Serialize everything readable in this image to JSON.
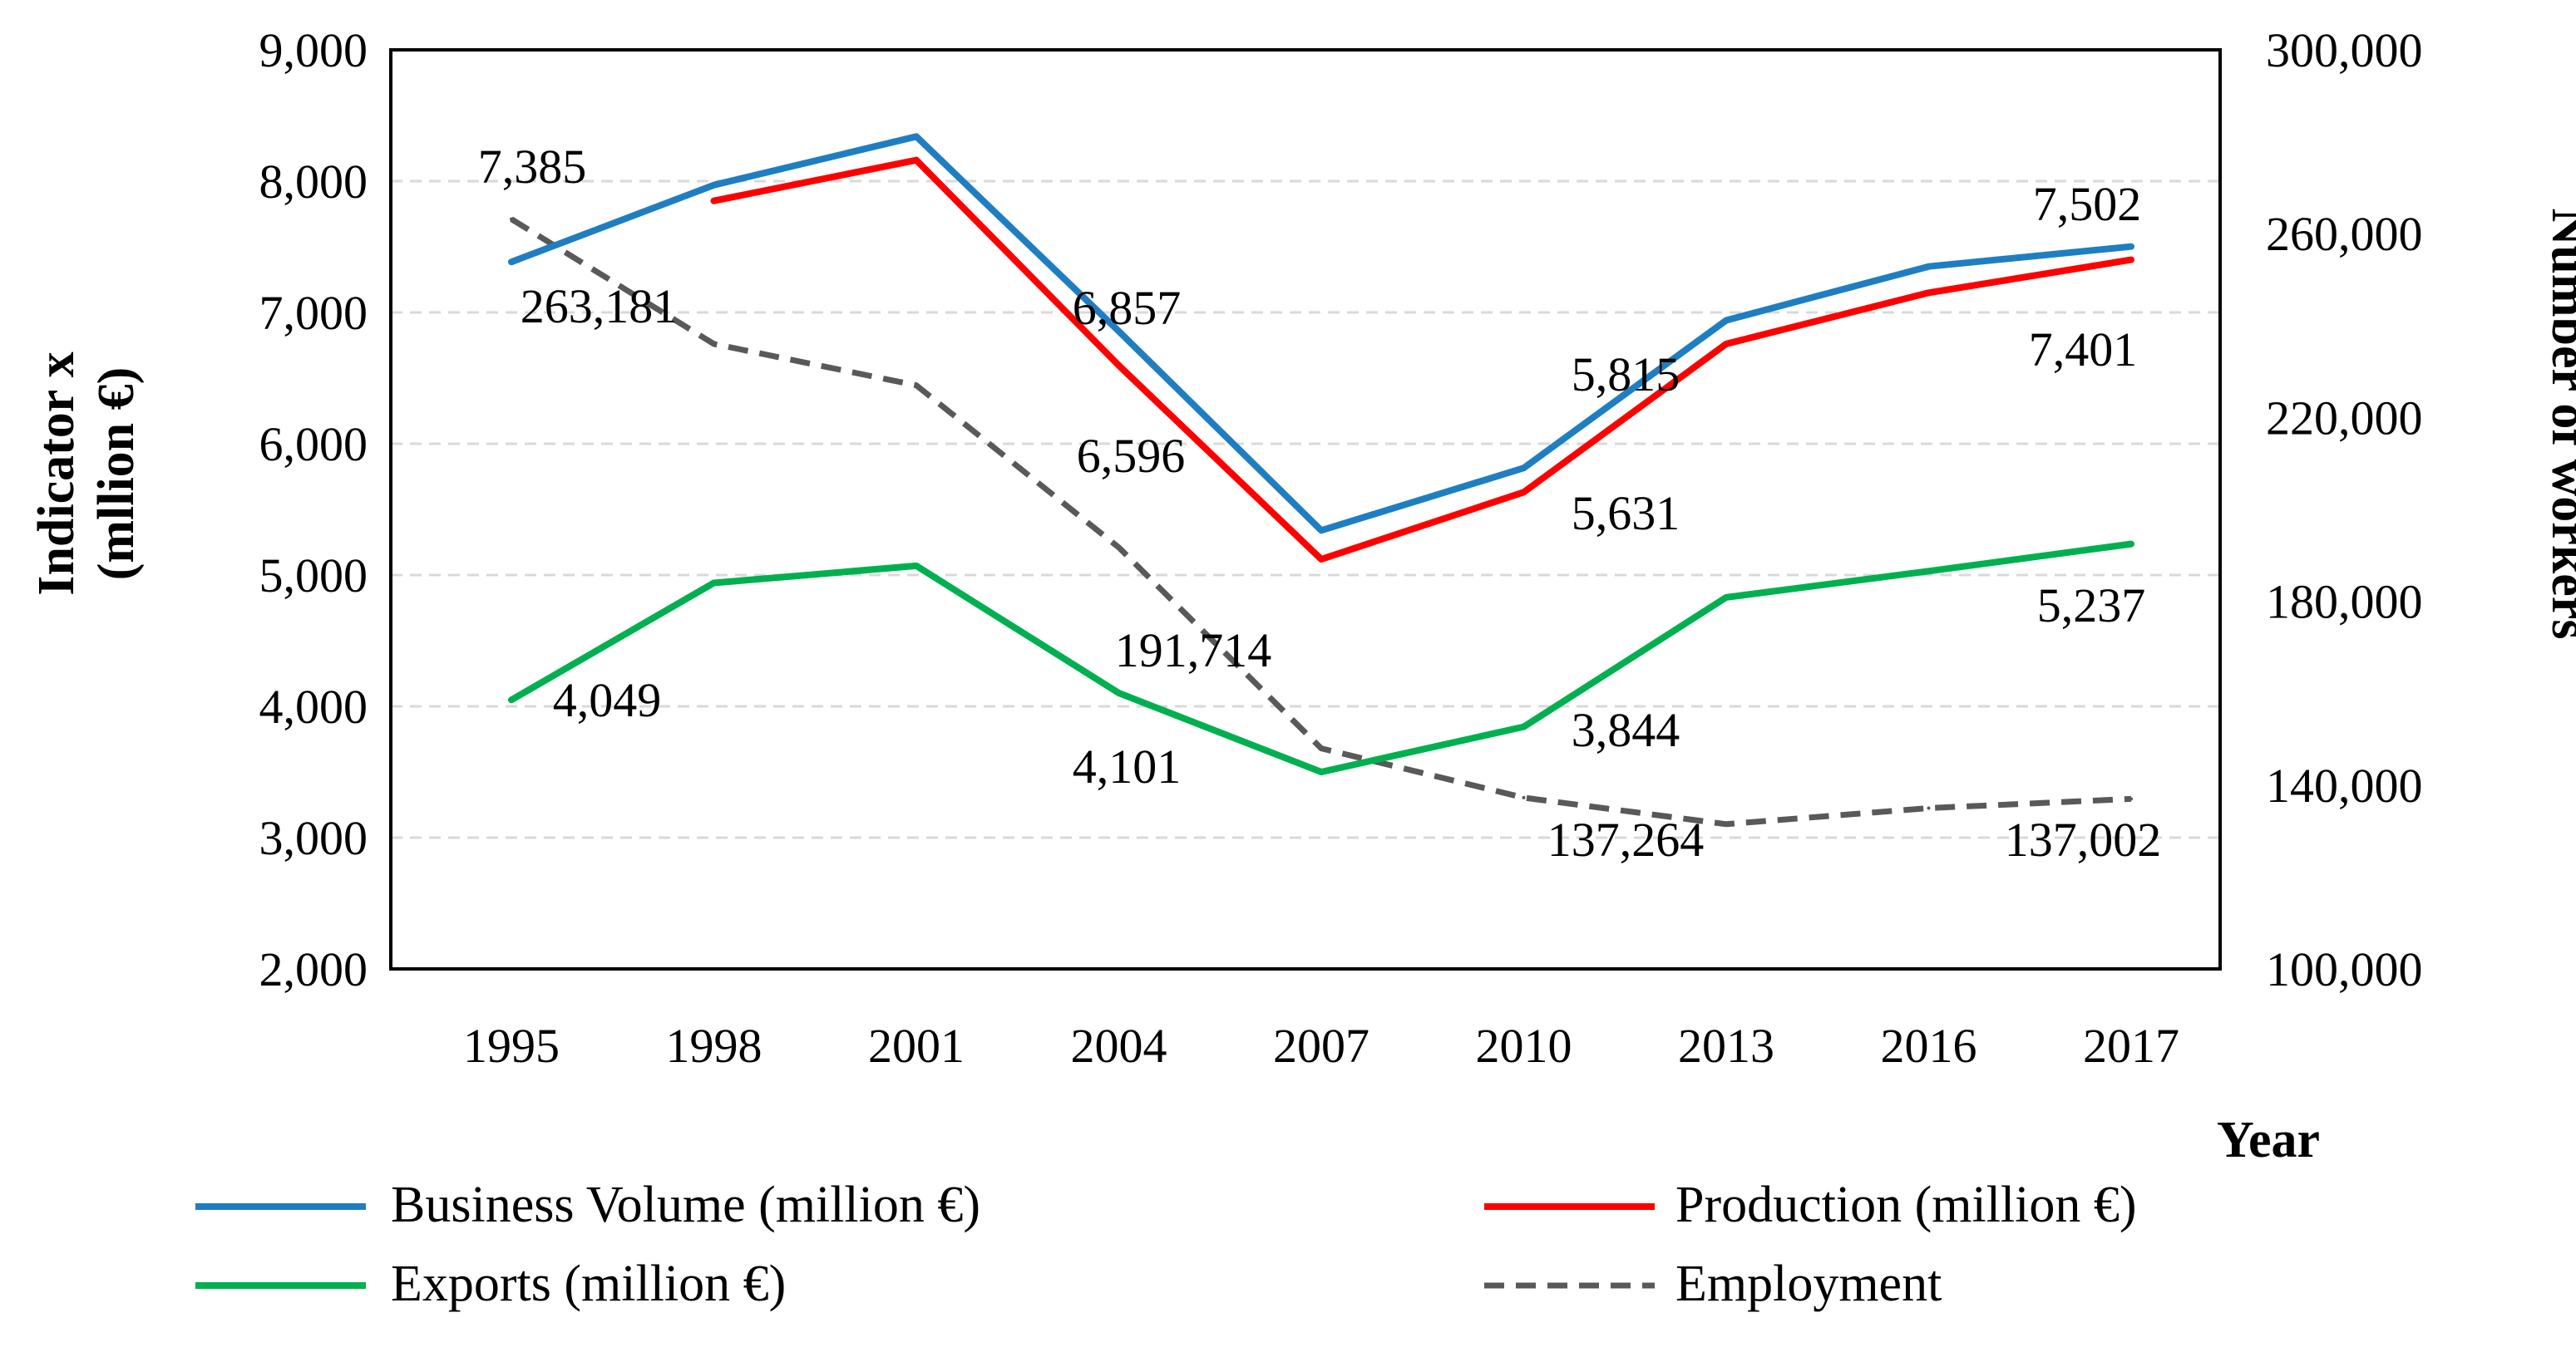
{
  "chart_data": {
    "type": "line",
    "title": "",
    "xlabel": "Year",
    "ylabel_left": [
      "Indicator x",
      "(mllion €)"
    ],
    "ylabel_right": "Number of workers",
    "categories": [
      "1995",
      "1998",
      "2001",
      "2004",
      "2007",
      "2010",
      "2013",
      "2016",
      "2017"
    ],
    "ylim_left": [
      2000,
      9000
    ],
    "yticks_left": [
      "2,000",
      "3,000",
      "4,000",
      "5,000",
      "6,000",
      "7,000",
      "8,000",
      "9,000"
    ],
    "ylim_right": [
      100000,
      300000
    ],
    "yticks_right": [
      "100,000",
      "140,000",
      "180,000",
      "220,000",
      "260,000",
      "300,000"
    ],
    "grid": true,
    "legend_position": "bottom",
    "series": [
      {
        "name": "Business  Volume (million €)",
        "axis": "left",
        "color": "#1f7ec2",
        "style": "solid",
        "values": [
          7385,
          7970,
          8340,
          6857,
          5340,
          5815,
          6940,
          7350,
          7502
        ],
        "labels": [
          {
            "index": 0,
            "text": "7,385"
          },
          {
            "index": 3,
            "text": "6,857"
          },
          {
            "index": 5,
            "text": "5,815"
          },
          {
            "index": 8,
            "text": "7,502"
          }
        ]
      },
      {
        "name": "Production  (million €)",
        "axis": "left",
        "color": "#ff0000",
        "style": "solid",
        "values": [
          null,
          7850,
          8160,
          6596,
          5120,
          5631,
          6760,
          7150,
          7401
        ],
        "labels": [
          {
            "index": 3,
            "text": "6,596"
          },
          {
            "index": 5,
            "text": "5,631"
          },
          {
            "index": 8,
            "text": "7,401"
          }
        ]
      },
      {
        "name": "Exports  (million €)",
        "axis": "left",
        "color": "#00b050",
        "style": "solid",
        "values": [
          4049,
          4940,
          5070,
          4101,
          3500,
          3844,
          4830,
          5030,
          5237
        ],
        "labels": [
          {
            "index": 0,
            "text": "4,049"
          },
          {
            "index": 3,
            "text": "4,101"
          },
          {
            "index": 5,
            "text": "3,844"
          },
          {
            "index": 8,
            "text": "5,237"
          }
        ]
      },
      {
        "name": "Employment",
        "axis": "right",
        "color": "#595959",
        "style": "dashed",
        "values": [
          263181,
          236000,
          227000,
          191714,
          148000,
          137264,
          131500,
          135000,
          137002
        ],
        "labels": [
          {
            "index": 0,
            "text": "263,181"
          },
          {
            "index": 3,
            "text": "191,714"
          },
          {
            "index": 5,
            "text": "137,264"
          },
          {
            "index": 8,
            "text": "137,002"
          }
        ]
      }
    ]
  }
}
